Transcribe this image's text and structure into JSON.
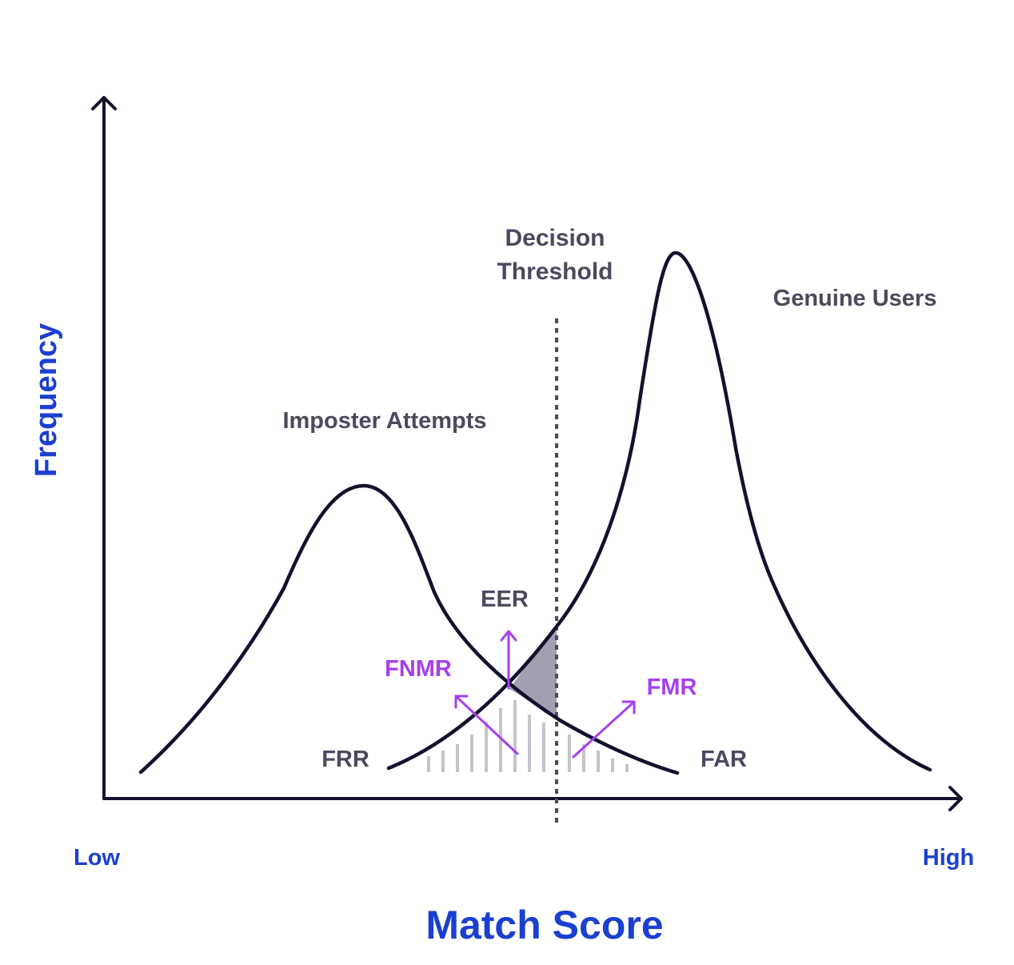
{
  "labels": {
    "y_axis": "Frequency",
    "x_axis": "Match Score",
    "x_low": "Low",
    "x_high": "High",
    "decision_line1": "Decision",
    "decision_line2": "Threshold",
    "genuine": "Genuine Users",
    "imposter": "Imposter Attempts",
    "eer": "EER",
    "fnmr": "FNMR",
    "fmr": "FMR",
    "frr": "FRR",
    "far": "FAR"
  },
  "colors": {
    "curve": "#14112e",
    "text_dark": "#4a4a5e",
    "axis_label": "#1b3fd1",
    "rate_label": "#a63ff0",
    "shade": "#a19fb0",
    "hatch": "#c4c3cc"
  }
}
